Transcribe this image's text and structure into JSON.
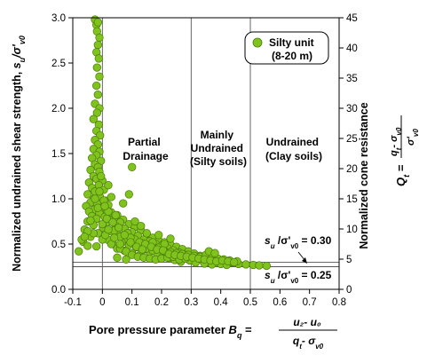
{
  "chart_data": {
    "type": "scatter",
    "x_axis": {
      "label_prefix": "Pore pressure parameter",
      "symbol": "B",
      "symbol_sub": "q",
      "formula_num": "u₂- u₀",
      "formula_den_main": "q",
      "formula_den_sub": "t",
      "formula_den_tail": "- σ",
      "formula_den_tail_sub": "v0",
      "range": [
        -0.1,
        0.8
      ],
      "ticks": [
        "-0.1",
        "0",
        "0.1",
        "0.2",
        "0.3",
        "0.4",
        "0.5",
        "0.6",
        "0.7",
        "0.8"
      ]
    },
    "y_axis_left": {
      "label_main": "Normalized undrained shear strength,",
      "label_symbol": "s",
      "label_symbol_sub": "u",
      "label_slash": "/σ'",
      "label_tail_sub": "v0",
      "range": [
        0,
        3.0
      ],
      "ticks": [
        "0.0",
        "0.5",
        "1.0",
        "1.5",
        "2.0",
        "2.5",
        "3.0"
      ]
    },
    "y_axis_right": {
      "label_main": "Normalized cone resistance",
      "symbol": "Q",
      "symbol_sub": "t",
      "formula_num": "q",
      "formula_num_sub": "t",
      "formula_num_tail": "- σ",
      "formula_num_tail_sub": "v0",
      "formula_den": "σ'",
      "formula_den_sub": "v0",
      "range": [
        0,
        45
      ],
      "ticks": [
        "0",
        "5",
        "10",
        "15",
        "20",
        "25",
        "30",
        "35",
        "40",
        "45"
      ]
    },
    "legend": {
      "line1": "Silty unit",
      "line2": "(8-20 m)",
      "position": "top-right"
    },
    "zones": [
      {
        "label_lines": [
          "Partial",
          "Drainage"
        ]
      },
      {
        "label_lines": [
          "Mainly",
          "Undrained",
          "(Silty soils)"
        ]
      },
      {
        "label_lines": [
          "Undrained",
          "(Clay soils)"
        ]
      }
    ],
    "vertical_lines_x": [
      0,
      0.3,
      0.5
    ],
    "horizontal_lines": [
      {
        "y": 0.3,
        "prefix": "s",
        "sub": "u",
        "text": " /σ'",
        "sub2": "v0",
        "value": " = 0.30"
      },
      {
        "y": 0.25,
        "prefix": "s",
        "sub": "u",
        "text": " /σ'",
        "sub2": "v0",
        "value": " = 0.25"
      }
    ],
    "marker_color": "#80c31c",
    "marker_edge": "#4a7a0c",
    "points": [
      [
        -0.025,
        2.98
      ],
      [
        -0.02,
        2.92
      ],
      [
        -0.015,
        2.95
      ],
      [
        -0.018,
        2.85
      ],
      [
        -0.01,
        2.78
      ],
      [
        -0.015,
        2.7
      ],
      [
        -0.02,
        2.62
      ],
      [
        -0.012,
        2.55
      ],
      [
        -0.018,
        2.45
      ],
      [
        -0.01,
        2.35
      ],
      [
        -0.02,
        2.25
      ],
      [
        -0.015,
        2.15
      ],
      [
        -0.025,
        2.05
      ],
      [
        -0.01,
        2.0
      ],
      [
        -0.018,
        1.95
      ],
      [
        -0.03,
        1.88
      ],
      [
        -0.012,
        1.82
      ],
      [
        -0.02,
        1.75
      ],
      [
        -0.008,
        1.7
      ],
      [
        -0.025,
        1.65
      ],
      [
        -0.015,
        1.6
      ],
      [
        -0.03,
        1.55
      ],
      [
        -0.01,
        1.52
      ],
      [
        -0.02,
        1.48
      ],
      [
        -0.035,
        1.45
      ],
      [
        -0.005,
        1.42
      ],
      [
        -0.025,
        1.38
      ],
      [
        -0.015,
        1.35
      ],
      [
        -0.04,
        1.32
      ],
      [
        -0.01,
        1.3
      ],
      [
        -0.03,
        1.25
      ],
      [
        -0.02,
        1.22
      ],
      [
        0.0,
        1.2
      ],
      [
        -0.045,
        1.18
      ],
      [
        -0.012,
        1.15
      ],
      [
        -0.035,
        1.12
      ],
      [
        0.005,
        1.1
      ],
      [
        -0.025,
        1.08
      ],
      [
        -0.05,
        1.05
      ],
      [
        -0.008,
        1.02
      ],
      [
        -0.03,
        1.0
      ],
      [
        0.01,
        0.98
      ],
      [
        -0.04,
        0.96
      ],
      [
        -0.018,
        0.95
      ],
      [
        0.02,
        0.93
      ],
      [
        -0.055,
        0.92
      ],
      [
        0.0,
        0.9
      ],
      [
        -0.028,
        0.88
      ],
      [
        0.015,
        0.87
      ],
      [
        -0.045,
        0.86
      ],
      [
        0.03,
        0.85
      ],
      [
        -0.01,
        0.84
      ],
      [
        0.05,
        0.82
      ],
      [
        -0.035,
        0.81
      ],
      [
        0.008,
        0.8
      ],
      [
        0.04,
        0.79
      ],
      [
        -0.02,
        0.78
      ],
      [
        0.07,
        0.77
      ],
      [
        0.025,
        0.76
      ],
      [
        -0.05,
        0.75
      ],
      [
        0.06,
        0.74
      ],
      [
        0.012,
        0.73
      ],
      [
        0.09,
        0.72
      ],
      [
        -0.03,
        0.71
      ],
      [
        0.045,
        0.7
      ],
      [
        0.11,
        0.69
      ],
      [
        0.002,
        0.68
      ],
      [
        0.075,
        0.67
      ],
      [
        -0.06,
        0.66
      ],
      [
        0.13,
        0.65
      ],
      [
        0.03,
        0.64
      ],
      [
        0.1,
        0.63
      ],
      [
        -0.015,
        0.62
      ],
      [
        0.15,
        0.61
      ],
      [
        0.055,
        0.6
      ],
      [
        0.12,
        0.59
      ],
      [
        -0.04,
        0.58
      ],
      [
        0.17,
        0.57
      ],
      [
        0.08,
        0.56
      ],
      [
        0.14,
        0.55
      ],
      [
        0.02,
        0.545
      ],
      [
        0.19,
        0.54
      ],
      [
        0.105,
        0.535
      ],
      [
        0.16,
        0.53
      ],
      [
        -0.065,
        0.525
      ],
      [
        0.21,
        0.52
      ],
      [
        0.065,
        0.515
      ],
      [
        0.135,
        0.51
      ],
      [
        0.18,
        0.505
      ],
      [
        0.035,
        0.5
      ],
      [
        0.23,
        0.495
      ],
      [
        0.09,
        0.49
      ],
      [
        0.155,
        0.485
      ],
      [
        0.2,
        0.48
      ],
      [
        -0.02,
        0.475
      ],
      [
        0.25,
        0.47
      ],
      [
        0.115,
        0.465
      ],
      [
        0.175,
        0.46
      ],
      [
        0.22,
        0.455
      ],
      [
        0.05,
        0.45
      ],
      [
        0.27,
        0.445
      ],
      [
        0.14,
        0.44
      ],
      [
        0.195,
        0.435
      ],
      [
        0.24,
        0.43
      ],
      [
        0.075,
        0.425
      ],
      [
        0.29,
        0.42
      ],
      [
        0.16,
        0.415
      ],
      [
        0.215,
        0.41
      ],
      [
        0.26,
        0.405
      ],
      [
        0.1,
        0.4
      ],
      [
        0.31,
        0.395
      ],
      [
        0.185,
        0.39
      ],
      [
        0.235,
        0.385
      ],
      [
        0.28,
        0.38
      ],
      [
        0.125,
        0.375
      ],
      [
        0.33,
        0.37
      ],
      [
        0.205,
        0.365
      ],
      [
        0.255,
        0.36
      ],
      [
        0.3,
        0.355
      ],
      [
        0.35,
        0.35
      ],
      [
        0.225,
        0.345
      ],
      [
        0.275,
        0.34
      ],
      [
        0.32,
        0.335
      ],
      [
        0.37,
        0.33
      ],
      [
        0.245,
        0.325
      ],
      [
        0.295,
        0.32
      ],
      [
        0.34,
        0.315
      ],
      [
        0.39,
        0.31
      ],
      [
        0.265,
        0.305
      ],
      [
        0.36,
        0.3
      ],
      [
        0.41,
        0.3
      ],
      [
        0.315,
        0.295
      ],
      [
        0.38,
        0.29
      ],
      [
        0.43,
        0.29
      ],
      [
        0.345,
        0.285
      ],
      [
        0.4,
        0.28
      ],
      [
        0.46,
        0.28
      ],
      [
        0.485,
        0.275
      ],
      [
        0.51,
        0.27
      ],
      [
        0.53,
        0.265
      ],
      [
        0.555,
        0.26
      ],
      [
        0.37,
        0.275
      ],
      [
        0.42,
        0.27
      ],
      [
        0.44,
        0.3
      ],
      [
        0.455,
        0.31
      ],
      [
        0.0,
        0.55
      ],
      [
        0.01,
        0.6
      ],
      [
        0.03,
        0.5
      ],
      [
        0.06,
        0.45
      ],
      [
        0.08,
        0.42
      ],
      [
        0.1,
        0.38
      ],
      [
        0.12,
        0.36
      ],
      [
        0.14,
        0.35
      ],
      [
        0.16,
        0.34
      ],
      [
        0.18,
        0.33
      ],
      [
        0.2,
        0.34
      ],
      [
        0.22,
        0.35
      ],
      [
        0.24,
        0.36
      ],
      [
        0.26,
        0.33
      ],
      [
        0.28,
        0.34
      ],
      [
        0.07,
        0.95
      ],
      [
        0.09,
        1.05
      ],
      [
        0.1,
        1.35
      ],
      [
        -0.07,
        0.55
      ],
      [
        -0.08,
        0.42
      ],
      [
        -0.05,
        0.48
      ],
      [
        0.04,
        0.65
      ],
      [
        0.06,
        0.58
      ],
      [
        0.085,
        0.62
      ],
      [
        0.11,
        0.55
      ],
      [
        0.13,
        0.48
      ],
      [
        0.15,
        0.45
      ],
      [
        0.17,
        0.43
      ],
      [
        0.19,
        0.46
      ],
      [
        0.21,
        0.42
      ],
      [
        0.23,
        0.41
      ],
      [
        0.25,
        0.4
      ],
      [
        0.27,
        0.39
      ],
      [
        0.29,
        0.38
      ],
      [
        0.31,
        0.37
      ],
      [
        0.33,
        0.36
      ],
      [
        0.35,
        0.38
      ],
      [
        0.37,
        0.35
      ],
      [
        0.39,
        0.34
      ],
      [
        0.41,
        0.33
      ],
      [
        0.43,
        0.32
      ],
      [
        0.36,
        0.42
      ],
      [
        0.38,
        0.4
      ],
      [
        0.21,
        0.5
      ],
      [
        0.17,
        0.52
      ],
      [
        0.05,
        0.35
      ],
      [
        0.08,
        0.33
      ],
      [
        0.15,
        0.62
      ],
      [
        0.19,
        0.6
      ],
      [
        0.23,
        0.56
      ],
      [
        0.11,
        0.75
      ],
      [
        0.13,
        0.7
      ],
      [
        0.03,
        1.02
      ],
      [
        0.02,
        1.15
      ],
      [
        -0.03,
        0.62
      ],
      [
        0.0,
        0.72
      ],
      [
        0.045,
        0.82
      ],
      [
        0.095,
        0.57
      ],
      [
        0.125,
        0.52
      ],
      [
        0.145,
        0.5
      ],
      [
        0.165,
        0.47
      ],
      [
        0.185,
        0.44
      ],
      [
        0.205,
        0.43
      ],
      [
        0.225,
        0.39
      ],
      [
        0.245,
        0.38
      ],
      [
        0.265,
        0.37
      ],
      [
        0.285,
        0.36
      ],
      [
        0.305,
        0.35
      ],
      [
        0.325,
        0.34
      ],
      [
        0.345,
        0.33
      ],
      [
        0.365,
        0.32
      ],
      [
        0.385,
        0.31
      ],
      [
        0.405,
        0.32
      ],
      [
        0.425,
        0.31
      ],
      [
        0.445,
        0.3
      ],
      [
        0.06,
        0.5
      ],
      [
        0.04,
        0.57
      ],
      [
        0.02,
        0.66
      ],
      [
        0.015,
        0.78
      ],
      [
        0.035,
        0.74
      ],
      [
        0.055,
        0.68
      ],
      [
        0.075,
        0.6
      ],
      [
        0.095,
        0.52
      ],
      [
        0.115,
        0.47
      ],
      [
        0.135,
        0.44
      ],
      [
        -0.04,
        0.76
      ],
      [
        -0.05,
        0.64
      ],
      [
        -0.06,
        0.58
      ],
      [
        -0.015,
        0.9
      ],
      [
        -0.025,
        1.0
      ],
      [
        -0.01,
        1.08
      ],
      [
        0.005,
        0.98
      ],
      [
        0.02,
        0.86
      ],
      [
        0.008,
        0.92
      ],
      [
        -0.005,
        1.25
      ]
    ]
  }
}
